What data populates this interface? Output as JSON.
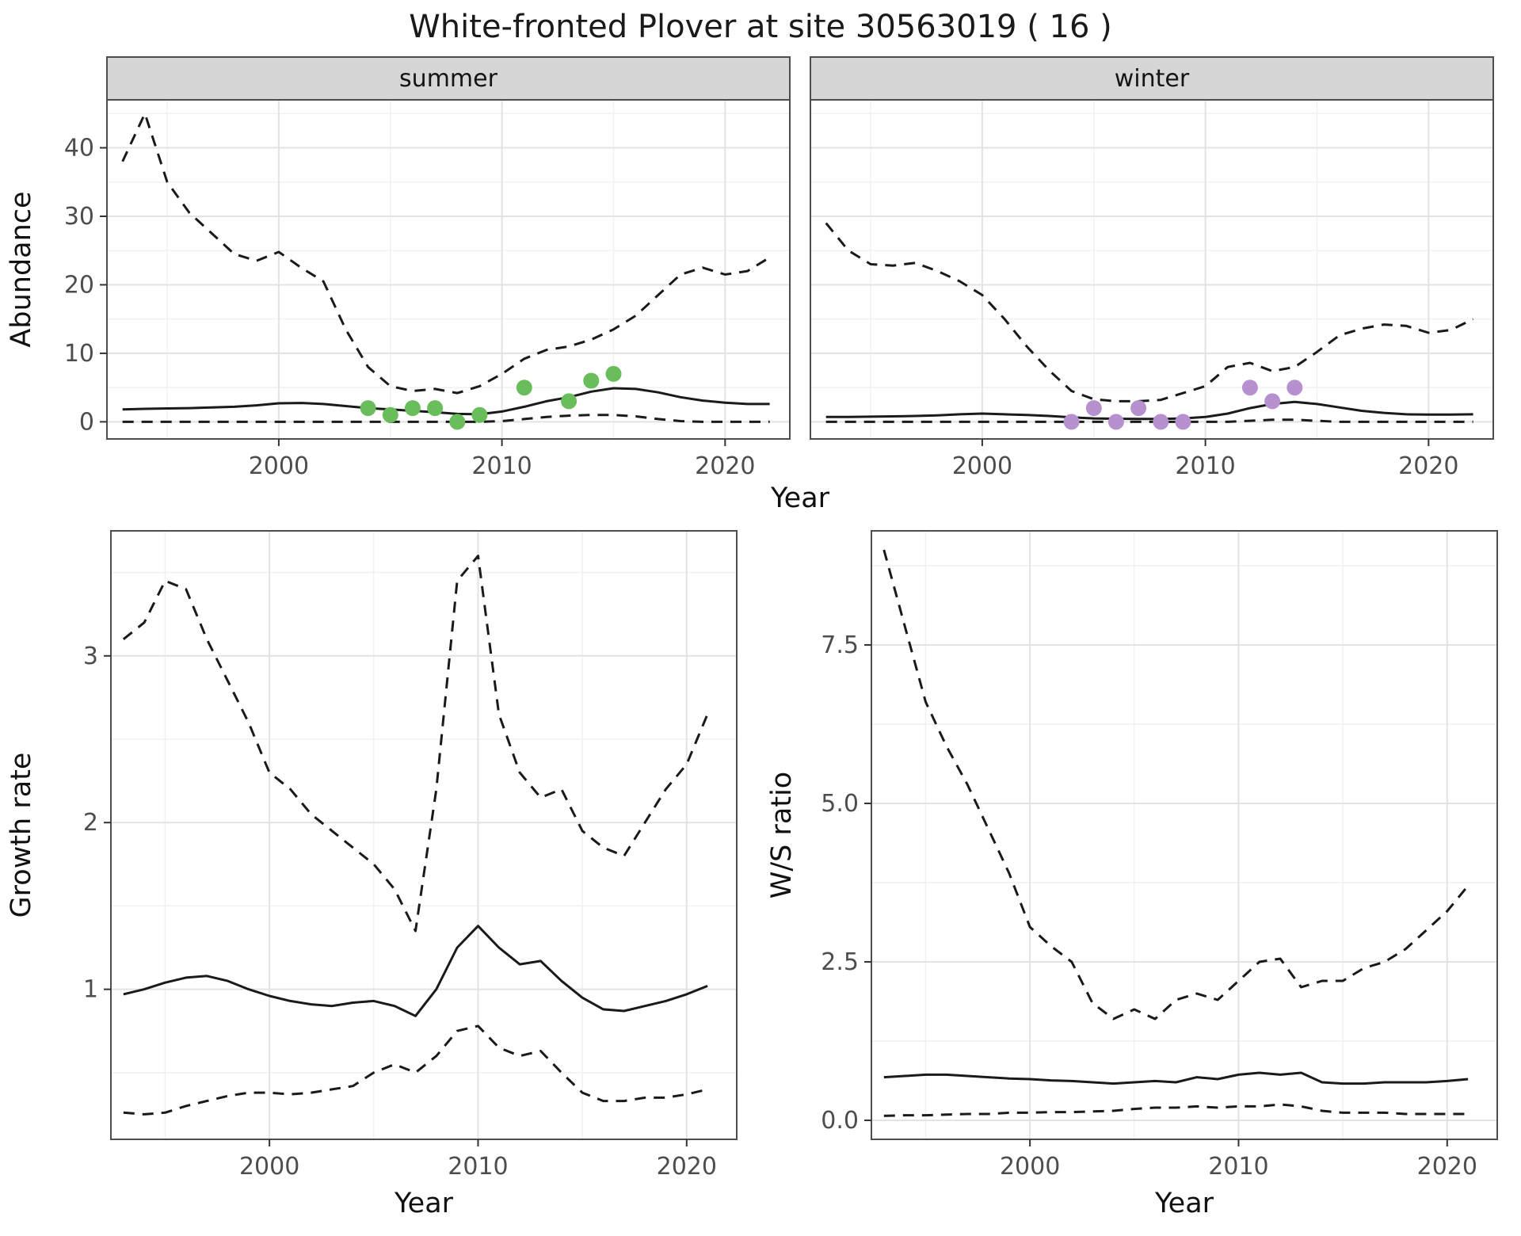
{
  "title": "White-fronted Plover at site 30563019 ( 16 )",
  "style": {
    "line_color": "#1a1a1a",
    "grid_major": "#e3e3e3",
    "grid_minor": "#f1f1f1",
    "panel_border": "#4d4d4d",
    "strip_bg": "#d6d6d6",
    "strip_text_color": "#141414",
    "tick_label_color": "#4d4d4d",
    "axis_title_color": "#111111",
    "summer_point_color": "#69bd5a",
    "winter_point_color": "#b791cf"
  },
  "chart_data": [
    {
      "id": "abundance",
      "type": "line",
      "xlabel": "Year",
      "ylabel": "Abundance",
      "xlim": [
        1992.3,
        2022.9
      ],
      "ylim": [
        -2.5,
        47
      ],
      "xticks": [
        2000,
        2010,
        2020
      ],
      "xticklabels": [
        "2000",
        "2010",
        "2020"
      ],
      "yticks": [
        0,
        10,
        20,
        30,
        40
      ],
      "yticklabels": [
        "0",
        "10",
        "20",
        "30",
        "40"
      ],
      "x": [
        1993,
        1994,
        1995,
        1996,
        1997,
        1998,
        1999,
        2000,
        2001,
        2002,
        2003,
        2004,
        2005,
        2006,
        2007,
        2008,
        2009,
        2010,
        2011,
        2012,
        2013,
        2014,
        2015,
        2016,
        2017,
        2018,
        2019,
        2020,
        2021,
        2022
      ],
      "facets": [
        {
          "label": "summer",
          "point_color": "#69bd5a",
          "series": [
            {
              "name": "upper-ci",
              "style": "dashed",
              "values": [
                38,
                45,
                35,
                30.5,
                27.5,
                24.5,
                23.5,
                24.8,
                22.5,
                20.5,
                13.5,
                8,
                5.2,
                4.5,
                4.8,
                4.2,
                5.2,
                7,
                9.2,
                10.5,
                11,
                12,
                13.5,
                15.5,
                18.5,
                21.5,
                22.5,
                21.5,
                22,
                24
              ]
            },
            {
              "name": "median",
              "style": "solid",
              "values": [
                1.8,
                1.9,
                1.95,
                2.0,
                2.1,
                2.2,
                2.4,
                2.7,
                2.75,
                2.6,
                2.3,
                2.0,
                1.8,
                1.6,
                1.4,
                1.15,
                1.1,
                1.5,
                2.2,
                3.0,
                3.6,
                4.4,
                4.9,
                4.8,
                4.3,
                3.6,
                3.1,
                2.8,
                2.6,
                2.6
              ]
            },
            {
              "name": "lower-ci",
              "style": "dashed",
              "values": [
                0,
                0,
                0,
                0,
                0,
                0,
                0,
                0,
                0,
                0,
                0,
                0,
                0,
                0,
                0,
                0,
                0,
                0.1,
                0.4,
                0.7,
                0.9,
                1.0,
                1.0,
                0.8,
                0.4,
                0.1,
                0,
                0,
                0,
                0
              ]
            }
          ],
          "observations": [
            [
              2004,
              2
            ],
            [
              2005,
              1
            ],
            [
              2006,
              2
            ],
            [
              2007,
              2
            ],
            [
              2008,
              0
            ],
            [
              2009,
              1
            ],
            [
              2011,
              5
            ],
            [
              2013,
              3
            ],
            [
              2014,
              6
            ],
            [
              2015,
              7
            ]
          ]
        },
        {
          "label": "winter",
          "point_color": "#b791cf",
          "series": [
            {
              "name": "upper-ci",
              "style": "dashed",
              "values": [
                29,
                25,
                23,
                22.8,
                23.2,
                22,
                20.5,
                18.5,
                15,
                11,
                7.5,
                4.5,
                3.3,
                3.0,
                3.0,
                3.2,
                4.2,
                5.2,
                8.0,
                8.6,
                7.4,
                8.0,
                10.2,
                12.6,
                13.6,
                14.2,
                14.0,
                13.0,
                13.4,
                15.0
              ]
            },
            {
              "name": "median",
              "style": "solid",
              "values": [
                0.7,
                0.72,
                0.75,
                0.8,
                0.85,
                0.95,
                1.1,
                1.2,
                1.1,
                1.0,
                0.85,
                0.65,
                0.5,
                0.45,
                0.42,
                0.42,
                0.5,
                0.7,
                1.2,
                2.0,
                2.6,
                2.9,
                2.6,
                2.1,
                1.6,
                1.3,
                1.1,
                1.05,
                1.05,
                1.1
              ]
            },
            {
              "name": "lower-ci",
              "style": "dashed",
              "values": [
                0,
                0,
                0,
                0,
                0,
                0,
                0,
                0,
                0,
                0,
                0,
                0,
                0,
                0,
                0,
                0,
                0,
                0,
                0,
                0.15,
                0.3,
                0.3,
                0.15,
                0,
                0,
                0,
                0,
                0,
                0,
                0
              ]
            }
          ],
          "observations": [
            [
              2004,
              0
            ],
            [
              2005,
              2
            ],
            [
              2006,
              0
            ],
            [
              2007,
              2
            ],
            [
              2008,
              0
            ],
            [
              2009,
              0
            ],
            [
              2012,
              5
            ],
            [
              2013,
              3
            ],
            [
              2014,
              5
            ]
          ]
        }
      ]
    },
    {
      "id": "growth_rate",
      "type": "line",
      "xlabel": "Year",
      "ylabel": "Growth rate",
      "xlim": [
        1992.4,
        2022.4
      ],
      "ylim": [
        0.1,
        3.75
      ],
      "xticks": [
        2000,
        2010,
        2020
      ],
      "xticklabels": [
        "2000",
        "2010",
        "2020"
      ],
      "yticks": [
        1,
        2,
        3
      ],
      "yticklabels": [
        "1",
        "2",
        "3"
      ],
      "x": [
        1993,
        1994,
        1995,
        1996,
        1997,
        1998,
        1999,
        2000,
        2001,
        2002,
        2003,
        2004,
        2005,
        2006,
        2007,
        2008,
        2009,
        2010,
        2011,
        2012,
        2013,
        2014,
        2015,
        2016,
        2017,
        2018,
        2019,
        2020,
        2021
      ],
      "facets": [
        {
          "label": "",
          "series": [
            {
              "name": "upper-ci",
              "style": "dashed",
              "values": [
                3.1,
                3.2,
                3.45,
                3.4,
                3.1,
                2.85,
                2.6,
                2.3,
                2.2,
                2.05,
                1.95,
                1.85,
                1.75,
                1.6,
                1.35,
                2.2,
                3.45,
                3.6,
                2.65,
                2.3,
                2.15,
                2.2,
                1.95,
                1.85,
                1.8,
                2.0,
                2.2,
                2.35,
                2.65
              ]
            },
            {
              "name": "median",
              "style": "solid",
              "values": [
                0.97,
                1.0,
                1.04,
                1.07,
                1.08,
                1.05,
                1.0,
                0.96,
                0.93,
                0.91,
                0.9,
                0.92,
                0.93,
                0.9,
                0.84,
                1.0,
                1.25,
                1.38,
                1.25,
                1.15,
                1.17,
                1.05,
                0.95,
                0.88,
                0.87,
                0.9,
                0.93,
                0.97,
                1.02
              ]
            },
            {
              "name": "lower-ci",
              "style": "dashed",
              "values": [
                0.26,
                0.25,
                0.26,
                0.3,
                0.33,
                0.36,
                0.38,
                0.38,
                0.37,
                0.38,
                0.4,
                0.42,
                0.5,
                0.55,
                0.5,
                0.6,
                0.75,
                0.78,
                0.65,
                0.6,
                0.63,
                0.5,
                0.38,
                0.33,
                0.33,
                0.35,
                0.35,
                0.37,
                0.4
              ]
            }
          ],
          "observations": []
        }
      ]
    },
    {
      "id": "ws_ratio",
      "type": "line",
      "xlabel": "Year",
      "ylabel": "W/S ratio",
      "xlim": [
        1992.4,
        2022.4
      ],
      "ylim": [
        -0.3,
        9.3
      ],
      "xticks": [
        2000,
        2010,
        2020
      ],
      "xticklabels": [
        "2000",
        "2010",
        "2020"
      ],
      "yticks": [
        0,
        2.5,
        5,
        7.5
      ],
      "yticklabels": [
        "0.0",
        "2.5",
        "5.0",
        "7.5"
      ],
      "x": [
        1993,
        1994,
        1995,
        1996,
        1997,
        1998,
        1999,
        2000,
        2001,
        2002,
        2003,
        2004,
        2005,
        2006,
        2007,
        2008,
        2009,
        2010,
        2011,
        2012,
        2013,
        2014,
        2015,
        2016,
        2017,
        2018,
        2019,
        2020,
        2021
      ],
      "facets": [
        {
          "label": "",
          "series": [
            {
              "name": "upper-ci",
              "style": "dashed",
              "values": [
                9.0,
                7.8,
                6.6,
                5.9,
                5.3,
                4.6,
                3.9,
                3.05,
                2.75,
                2.5,
                1.85,
                1.6,
                1.75,
                1.6,
                1.9,
                2.0,
                1.9,
                2.2,
                2.5,
                2.55,
                2.1,
                2.2,
                2.2,
                2.4,
                2.5,
                2.7,
                3.0,
                3.3,
                3.7
              ]
            },
            {
              "name": "median",
              "style": "solid",
              "values": [
                0.68,
                0.7,
                0.72,
                0.72,
                0.7,
                0.68,
                0.66,
                0.65,
                0.63,
                0.62,
                0.6,
                0.58,
                0.6,
                0.62,
                0.6,
                0.68,
                0.65,
                0.72,
                0.75,
                0.72,
                0.75,
                0.6,
                0.58,
                0.58,
                0.6,
                0.6,
                0.6,
                0.62,
                0.65
              ]
            },
            {
              "name": "lower-ci",
              "style": "dashed",
              "values": [
                0.07,
                0.08,
                0.08,
                0.09,
                0.1,
                0.1,
                0.12,
                0.12,
                0.13,
                0.13,
                0.14,
                0.15,
                0.18,
                0.2,
                0.2,
                0.22,
                0.2,
                0.22,
                0.22,
                0.25,
                0.22,
                0.15,
                0.12,
                0.12,
                0.12,
                0.1,
                0.1,
                0.1,
                0.1
              ]
            }
          ],
          "observations": []
        }
      ]
    }
  ]
}
